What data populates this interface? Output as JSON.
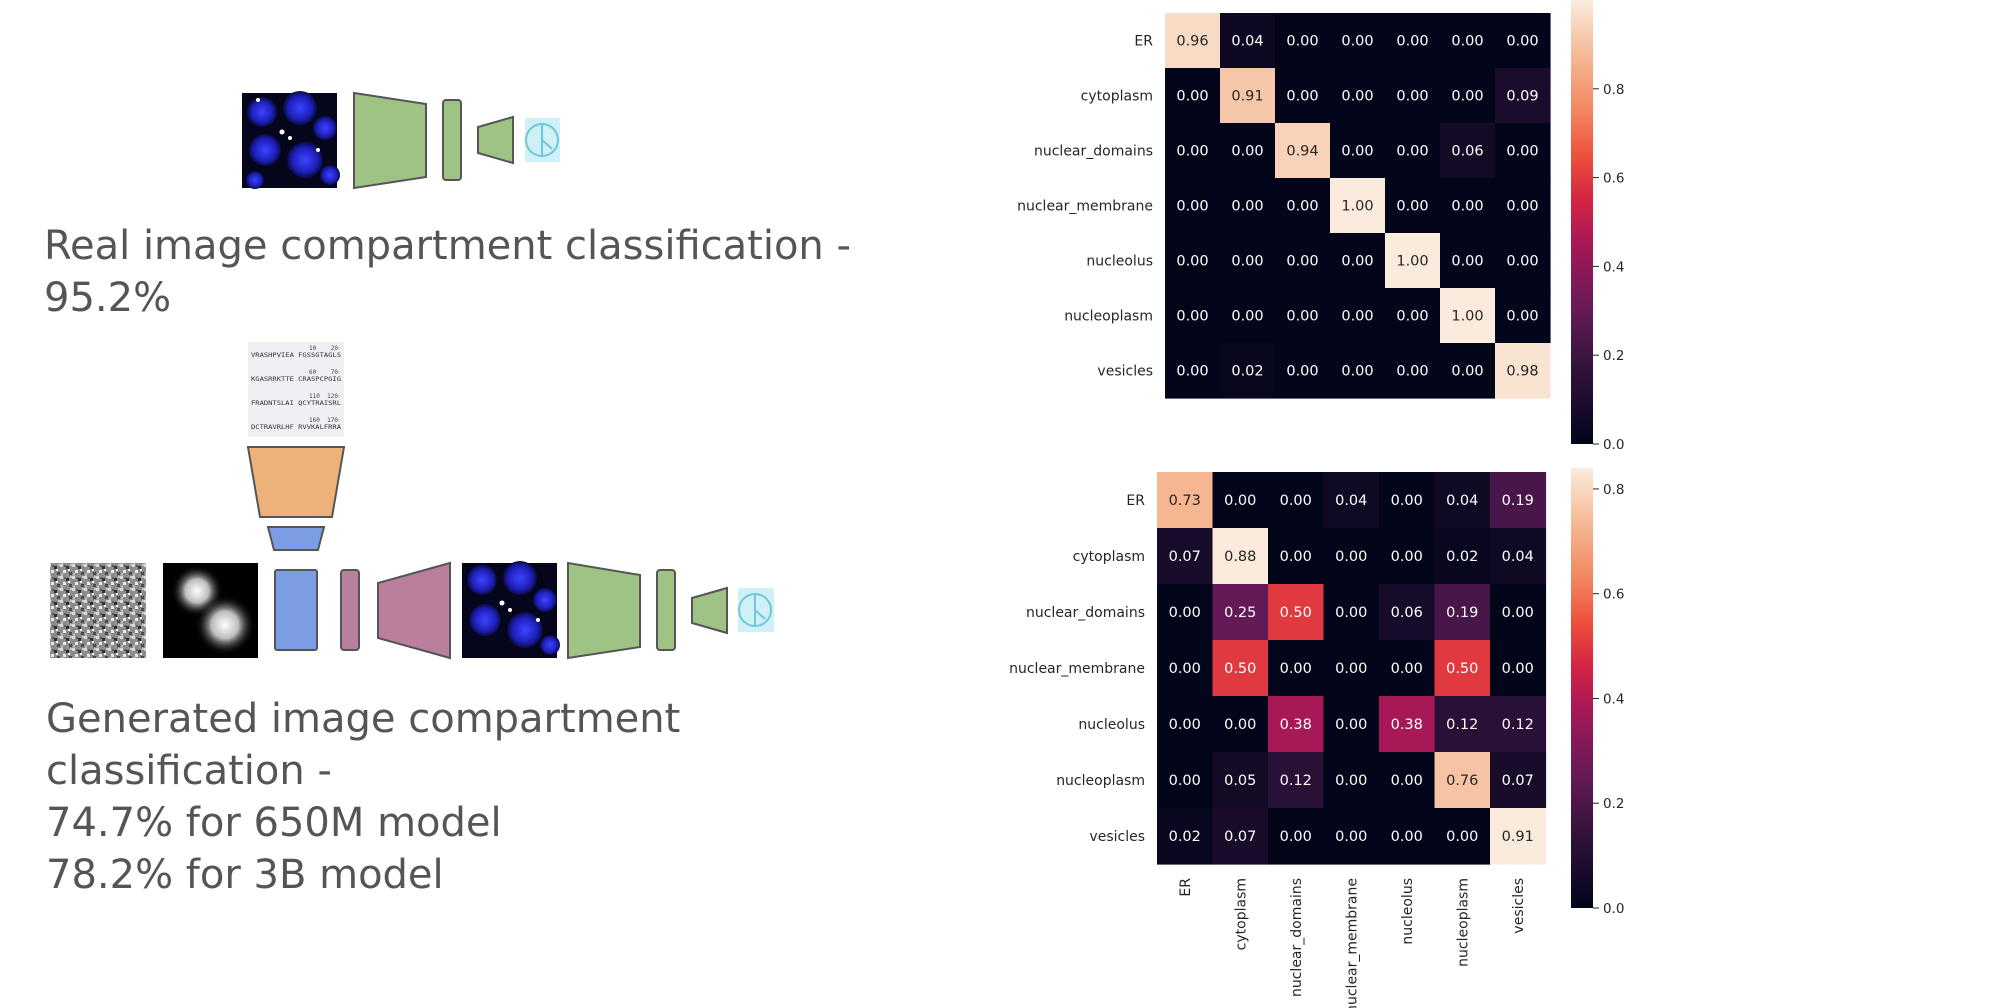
{
  "captions": {
    "real": [
      "Real image compartment classification -",
      "95.2%"
    ],
    "generated": [
      "Generated image compartment",
      "classification -",
      "74.7% for 650M model",
      "78.2% for 3B model"
    ]
  },
  "sequence_lines": [
    [
      "VRASHPVIEA  FGSSGTAGLS",
      "10",
      "20"
    ],
    [
      "KGASRRKTTE  CRASPCPGIG",
      "60",
      "70"
    ],
    [
      "FRADNTSLAI  QCYTRAISRL",
      "110",
      "120"
    ],
    [
      "DCTRAVRLHF  RVVKALFRRA",
      "160",
      "170"
    ]
  ],
  "colors": {
    "encoder_green": "#9ec384",
    "encoder_orange": "#ecb27a",
    "block_blue": "#7b9de3",
    "decoder_mauve": "#b97f9c",
    "classifier_cyan": "#a6e3ef",
    "panel_outline": "#555555"
  },
  "chart_data": [
    {
      "type": "heatmap",
      "name": "real image confusion matrix",
      "rows": [
        "ER",
        "cytoplasm",
        "nuclear_domains",
        "nuclear_membrane",
        "nucleolus",
        "nucleoplasm",
        "vesicles"
      ],
      "columns": [
        "ER",
        "cytoplasm",
        "nuclear_domains",
        "nuclear_membrane",
        "nucleolus",
        "nucleoplasm",
        "vesicles"
      ],
      "show_column_labels": false,
      "values": [
        [
          0.96,
          0.04,
          0.0,
          0.0,
          0.0,
          0.0,
          0.0
        ],
        [
          0.0,
          0.91,
          0.0,
          0.0,
          0.0,
          0.0,
          0.09
        ],
        [
          0.0,
          0.0,
          0.94,
          0.0,
          0.0,
          0.06,
          0.0
        ],
        [
          0.0,
          0.0,
          0.0,
          1.0,
          0.0,
          0.0,
          0.0
        ],
        [
          0.0,
          0.0,
          0.0,
          0.0,
          1.0,
          0.0,
          0.0
        ],
        [
          0.0,
          0.0,
          0.0,
          0.0,
          0.0,
          1.0,
          0.0
        ],
        [
          0.0,
          0.02,
          0.0,
          0.0,
          0.0,
          0.0,
          0.98
        ]
      ],
      "colorbar_range": [
        0.0,
        1.0
      ],
      "colorbar_ticks": [
        0.0,
        0.2,
        0.4,
        0.6,
        0.8
      ],
      "colormap": "rocket"
    },
    {
      "type": "heatmap",
      "name": "generated image confusion matrix",
      "rows": [
        "ER",
        "cytoplasm",
        "nuclear_domains",
        "nuclear_membrane",
        "nucleolus",
        "nucleoplasm",
        "vesicles"
      ],
      "columns": [
        "ER",
        "cytoplasm",
        "nuclear_domains",
        "nuclear_membrane",
        "nucleolus",
        "nucleoplasm",
        "vesicles"
      ],
      "show_column_labels": true,
      "values": [
        [
          0.73,
          0.0,
          0.0,
          0.04,
          0.0,
          0.04,
          0.19
        ],
        [
          0.07,
          0.88,
          0.0,
          0.0,
          0.0,
          0.02,
          0.04
        ],
        [
          0.0,
          0.25,
          0.5,
          0.0,
          0.06,
          0.19,
          0.0
        ],
        [
          0.0,
          0.5,
          0.0,
          0.0,
          0.0,
          0.5,
          0.0
        ],
        [
          0.0,
          0.0,
          0.38,
          0.0,
          0.38,
          0.12,
          0.12
        ],
        [
          0.0,
          0.05,
          0.12,
          0.0,
          0.0,
          0.76,
          0.07
        ],
        [
          0.02,
          0.07,
          0.0,
          0.0,
          0.0,
          0.0,
          0.91
        ]
      ],
      "colorbar_range": [
        0.0,
        0.84
      ],
      "colorbar_ticks": [
        0.0,
        0.2,
        0.4,
        0.6,
        0.8
      ],
      "colormap": "rocket"
    }
  ]
}
